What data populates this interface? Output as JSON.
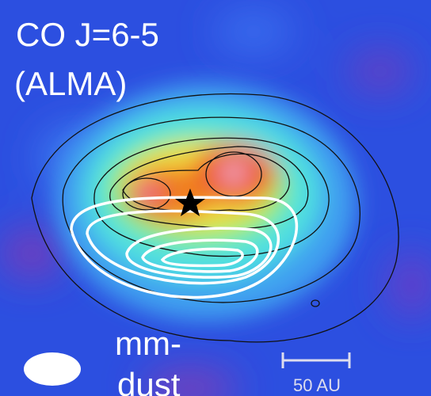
{
  "labels": {
    "title_line1": "CO J=6-5",
    "title_line2": "(ALMA)",
    "dust_line1": "mm-",
    "dust_line2": "dust",
    "scale": "50 AU"
  }
}
